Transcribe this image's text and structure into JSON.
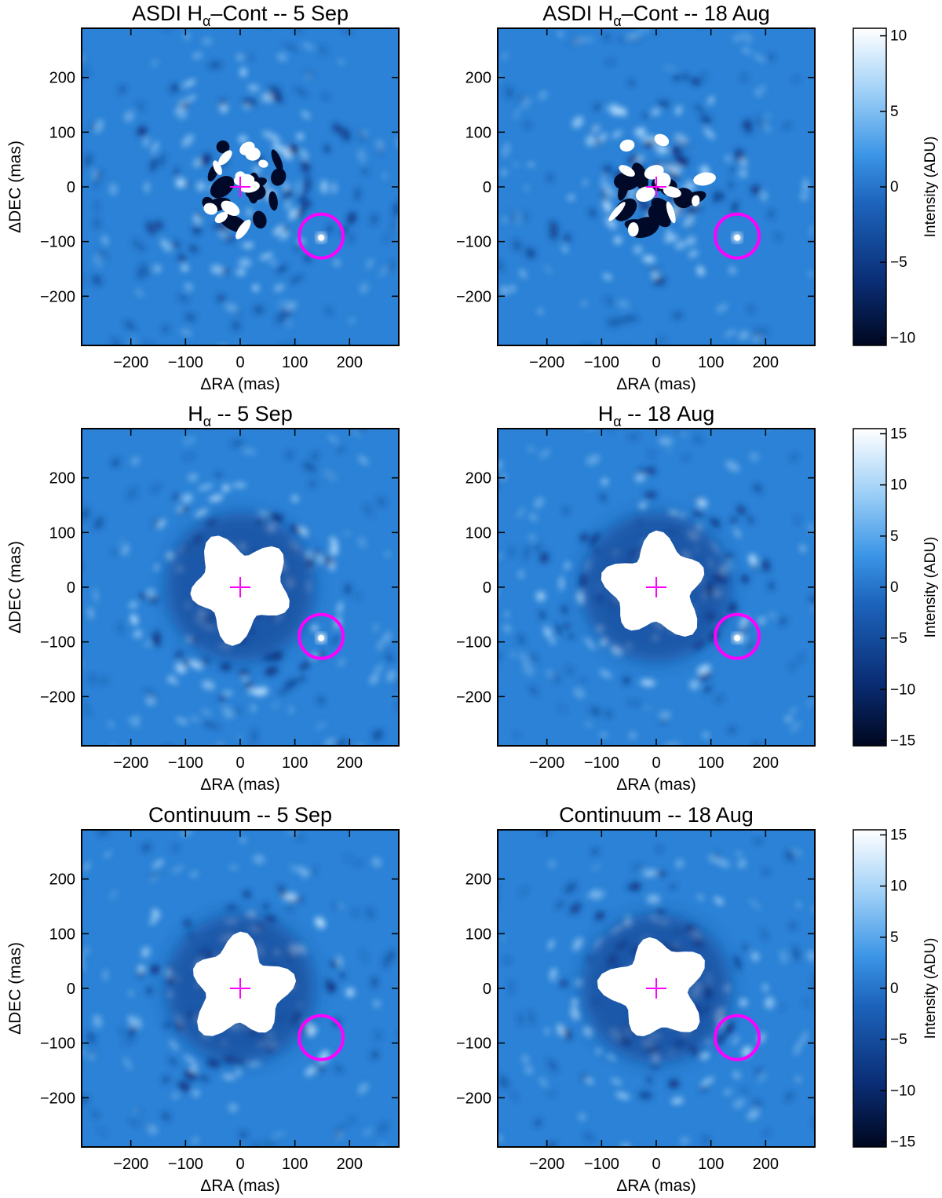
{
  "colors": {
    "background": "#2b82d6",
    "marker": "#ff00ff",
    "bright": "#ffffff",
    "dark": "#000a28"
  },
  "chart_data": [
    {
      "type": "heatmap",
      "title_main": "ASDI H",
      "title_sub": "α",
      "title_rest": "–Cont -- 5 Sep",
      "xlabel": "ΔRA (mas)",
      "ylabel": "ΔDEC (mas)",
      "xlim": [
        -290,
        290
      ],
      "ylim": [
        -290,
        290
      ],
      "xticks": [
        -200,
        -100,
        0,
        100,
        200
      ],
      "yticks": [
        -200,
        -100,
        0,
        100,
        200
      ],
      "star": {
        "x": 0,
        "y": 0
      },
      "circle": {
        "x": 148,
        "y": -90,
        "r": 40
      },
      "core": "speckle",
      "companion_visible": true,
      "seed": 11
    },
    {
      "type": "heatmap",
      "title_main": "ASDI H",
      "title_sub": "α",
      "title_rest": "–Cont -- 18 Aug",
      "xlabel": "ΔRA (mas)",
      "ylabel": "",
      "xlim": [
        -290,
        290
      ],
      "ylim": [
        -290,
        290
      ],
      "xticks": [
        -200,
        -100,
        0,
        100,
        200
      ],
      "yticks": [
        -200,
        -100,
        0,
        100,
        200
      ],
      "star": {
        "x": 0,
        "y": 0
      },
      "circle": {
        "x": 148,
        "y": -90,
        "r": 40
      },
      "core": "speckle",
      "companion_visible": true,
      "seed": 23
    },
    {
      "type": "heatmap",
      "title_main": "H",
      "title_sub": "α",
      "title_rest": " -- 5 Sep",
      "xlabel": "ΔRA (mas)",
      "ylabel": "ΔDEC (mas)",
      "xlim": [
        -290,
        290
      ],
      "ylim": [
        -290,
        290
      ],
      "xticks": [
        -200,
        -100,
        0,
        100,
        200
      ],
      "yticks": [
        -200,
        -100,
        0,
        100,
        200
      ],
      "star": {
        "x": 0,
        "y": 0
      },
      "circle": {
        "x": 148,
        "y": -90,
        "r": 40
      },
      "core": "saturated",
      "companion_visible": true,
      "seed": 37
    },
    {
      "type": "heatmap",
      "title_main": "H",
      "title_sub": "α",
      "title_rest": " -- 18 Aug",
      "xlabel": "ΔRA (mas)",
      "ylabel": "",
      "xlim": [
        -290,
        290
      ],
      "ylim": [
        -290,
        290
      ],
      "xticks": [
        -200,
        -100,
        0,
        100,
        200
      ],
      "yticks": [
        -200,
        -100,
        0,
        100,
        200
      ],
      "star": {
        "x": 0,
        "y": 0
      },
      "circle": {
        "x": 148,
        "y": -90,
        "r": 40
      },
      "core": "saturated",
      "companion_visible": true,
      "seed": 41
    },
    {
      "type": "heatmap",
      "title_main": "Continuum -- 5 Sep",
      "title_sub": "",
      "title_rest": "",
      "xlabel": "ΔRA (mas)",
      "ylabel": "ΔDEC (mas)",
      "xlim": [
        -290,
        290
      ],
      "ylim": [
        -290,
        290
      ],
      "xticks": [
        -200,
        -100,
        0,
        100,
        200
      ],
      "yticks": [
        -200,
        -100,
        0,
        100,
        200
      ],
      "star": {
        "x": 0,
        "y": 0
      },
      "circle": {
        "x": 148,
        "y": -90,
        "r": 40
      },
      "core": "saturated",
      "companion_visible": false,
      "seed": 53
    },
    {
      "type": "heatmap",
      "title_main": "Continuum -- 18 Aug",
      "title_sub": "",
      "title_rest": "",
      "xlabel": "ΔRA (mas)",
      "ylabel": "",
      "xlim": [
        -290,
        290
      ],
      "ylim": [
        -290,
        290
      ],
      "xticks": [
        -200,
        -100,
        0,
        100,
        200
      ],
      "yticks": [
        -200,
        -100,
        0,
        100,
        200
      ],
      "star": {
        "x": 0,
        "y": 0
      },
      "circle": {
        "x": 148,
        "y": -90,
        "r": 40
      },
      "core": "saturated",
      "companion_visible": false,
      "seed": 67
    }
  ],
  "colorbars": [
    {
      "label": "Intensity (ADU)",
      "range": [
        -10.5,
        10.5
      ],
      "ticks": [
        -10,
        -5,
        0,
        5,
        10
      ]
    },
    {
      "label": "Intensity (ADU)",
      "range": [
        -15.5,
        15.5
      ],
      "ticks": [
        -15,
        -10,
        -5,
        0,
        5,
        10,
        15
      ]
    },
    {
      "label": "Intensity (ADU)",
      "range": [
        -15.5,
        15.5
      ],
      "ticks": [
        -15,
        -10,
        -5,
        0,
        5,
        10,
        15
      ]
    }
  ]
}
